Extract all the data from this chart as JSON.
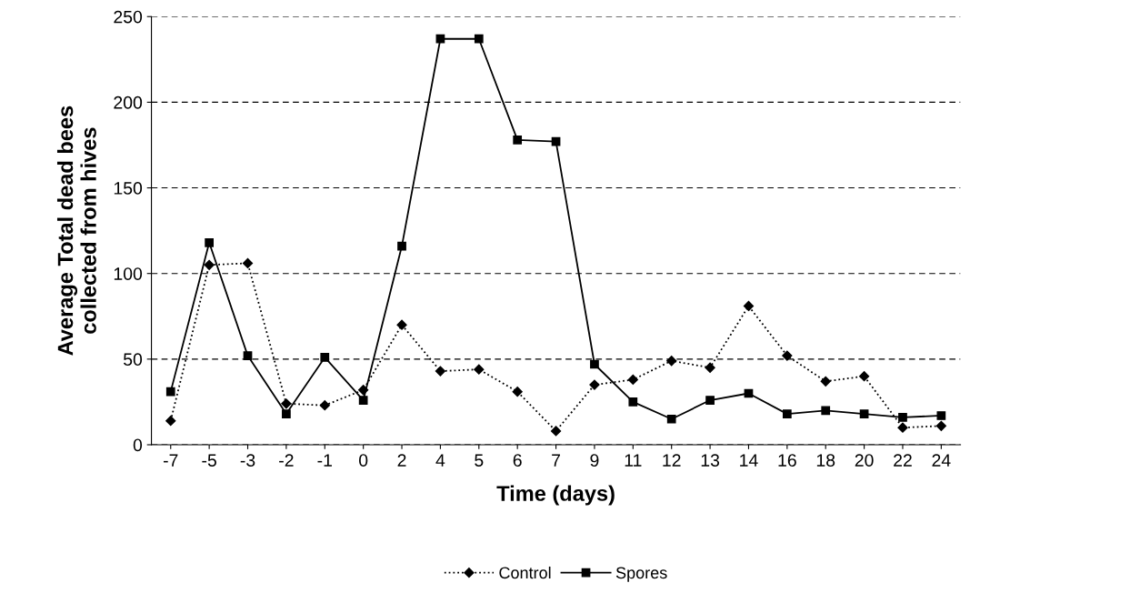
{
  "chart_data": {
    "type": "line",
    "xlabel": "Time (days)",
    "ylabel": "Average Total dead bees\ncollected from hives",
    "categories": [
      "-7",
      "-5",
      "-3",
      "-2",
      "-1",
      "0",
      "2",
      "4",
      "5",
      "6",
      "7",
      "9",
      "11",
      "12",
      "13",
      "14",
      "16",
      "18",
      "20",
      "22",
      "24"
    ],
    "series": [
      {
        "name": "Control",
        "color": "#000000",
        "marker": "diamond",
        "line_style": "dotted",
        "values": [
          14,
          105,
          106,
          24,
          23,
          32,
          70,
          43,
          44,
          31,
          8,
          35,
          38,
          49,
          45,
          81,
          52,
          37,
          40,
          10,
          11
        ]
      },
      {
        "name": "Spores",
        "color": "#000000",
        "marker": "square",
        "line_style": "solid",
        "values": [
          31,
          118,
          52,
          18,
          51,
          26,
          116,
          237,
          237,
          178,
          177,
          47,
          25,
          15,
          26,
          30,
          18,
          20,
          18,
          16,
          17
        ]
      }
    ],
    "ylim": [
      0,
      250
    ],
    "yticks": [
      0,
      50,
      100,
      150,
      200,
      250
    ],
    "grid": "y",
    "legend": "bottom"
  }
}
